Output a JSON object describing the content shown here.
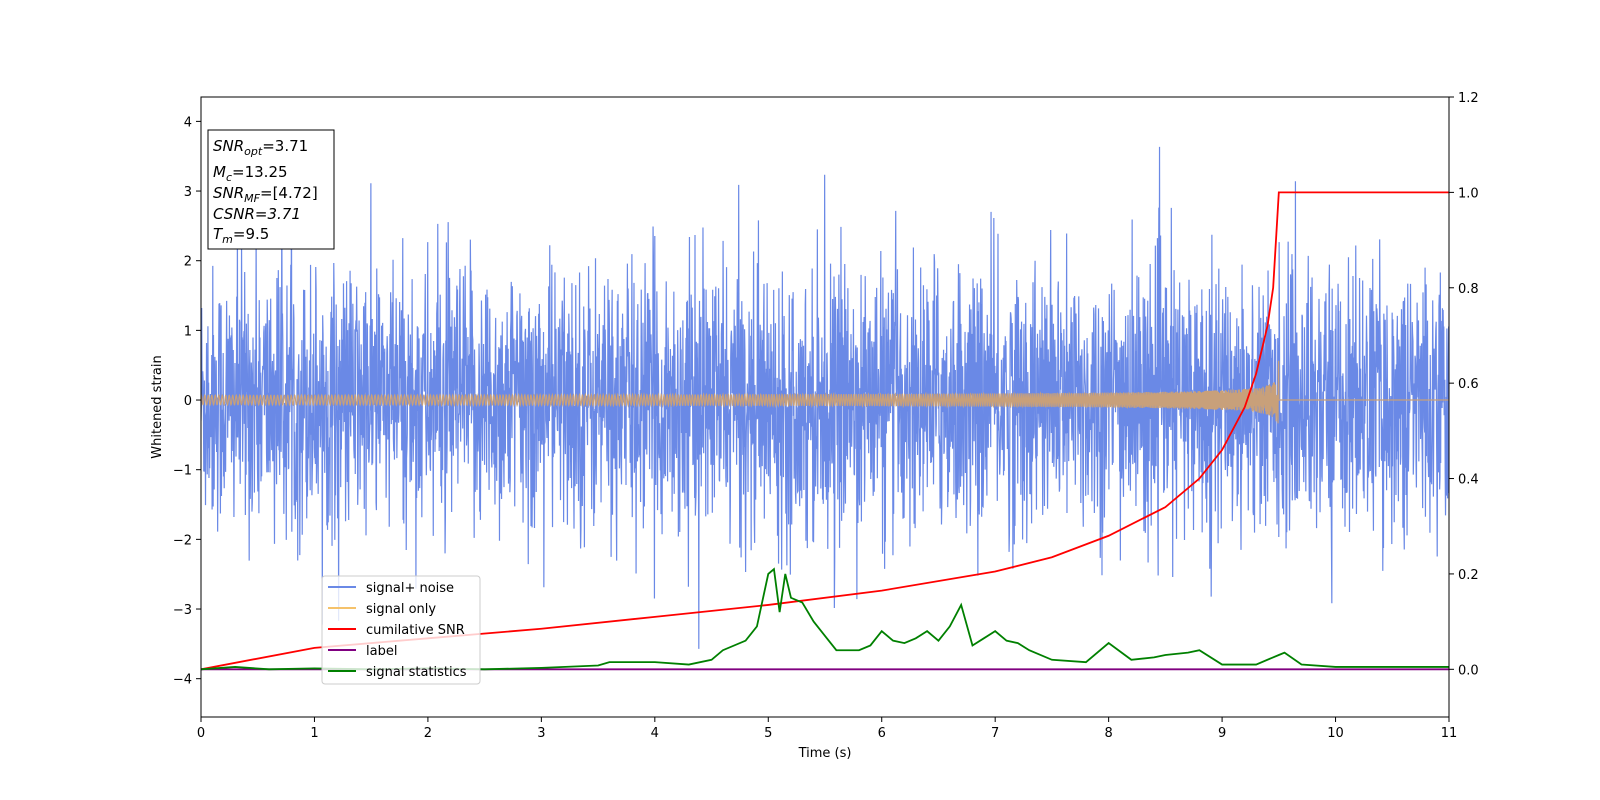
{
  "chart_data": {
    "type": "line",
    "xlabel": "Time (s)",
    "ylabel": "Whitened strain",
    "xlim": [
      0,
      11
    ],
    "ylim": [
      -4.55,
      4.35
    ],
    "y2lim": [
      -0.1,
      1.2
    ],
    "x_ticks": [
      "0",
      "1",
      "2",
      "3",
      "4",
      "5",
      "6",
      "7",
      "8",
      "9",
      "10",
      "11"
    ],
    "y_ticks": [
      "−4",
      "−3",
      "−2",
      "−1",
      "0",
      "1",
      "2",
      "3",
      "4"
    ],
    "y2_ticks": [
      "0.0",
      "0.2",
      "0.4",
      "0.6",
      "0.8",
      "1.0",
      "1.2"
    ],
    "legend_position": "lower-left",
    "info_box": {
      "snr_opt": "=3.71",
      "mc": "=13.25",
      "snr_mf": "=[4.72]",
      "csnr": "CSNR=3.71",
      "tm": "=9.5"
    },
    "series": [
      {
        "name": "signal+ noise",
        "color": "#6a89e6",
        "axis": "left",
        "description_values": "noise band approx ±2.3, spikes to ±4"
      },
      {
        "name": "signal only",
        "color": "#f5c26b",
        "axis": "left",
        "chirp_end_time": 9.5,
        "peak_amplitude": 0.75
      },
      {
        "name": "cumilative SNR",
        "color": "#ff0000",
        "axis": "right",
        "x": [
          0,
          1,
          2,
          3,
          4,
          5,
          6,
          7,
          7.5,
          8,
          8.5,
          8.8,
          9.0,
          9.2,
          9.3,
          9.4,
          9.45,
          9.5,
          11
        ],
        "y": [
          0.0,
          0.045,
          0.065,
          0.085,
          0.11,
          0.135,
          0.165,
          0.205,
          0.235,
          0.28,
          0.34,
          0.4,
          0.46,
          0.55,
          0.62,
          0.72,
          0.8,
          1.0,
          1.0
        ]
      },
      {
        "name": "label",
        "color": "#800080",
        "axis": "right",
        "x": [
          0,
          11
        ],
        "y": [
          0,
          0
        ]
      },
      {
        "name": "signal statistics",
        "color": "#008000",
        "axis": "right",
        "x": [
          0,
          0.3,
          0.6,
          1.0,
          1.5,
          2.0,
          2.5,
          3.0,
          3.5,
          3.6,
          4.0,
          4.3,
          4.5,
          4.6,
          4.8,
          4.9,
          5.0,
          5.05,
          5.1,
          5.15,
          5.2,
          5.3,
          5.4,
          5.5,
          5.6,
          5.8,
          5.9,
          6.0,
          6.1,
          6.2,
          6.3,
          6.4,
          6.5,
          6.6,
          6.7,
          6.8,
          6.9,
          7.0,
          7.1,
          7.2,
          7.3,
          7.5,
          7.8,
          8.0,
          8.2,
          8.4,
          8.5,
          8.7,
          8.8,
          9.0,
          9.3,
          9.5,
          9.55,
          9.7,
          10.0,
          10.5,
          11.0
        ],
        "y": [
          0.0,
          0.005,
          0.0,
          0.002,
          0.0,
          0.002,
          0.0,
          0.003,
          0.008,
          0.015,
          0.015,
          0.01,
          0.02,
          0.04,
          0.06,
          0.09,
          0.2,
          0.21,
          0.12,
          0.2,
          0.15,
          0.14,
          0.1,
          0.07,
          0.04,
          0.04,
          0.05,
          0.08,
          0.06,
          0.055,
          0.065,
          0.08,
          0.06,
          0.09,
          0.135,
          0.05,
          0.065,
          0.08,
          0.06,
          0.055,
          0.04,
          0.02,
          0.015,
          0.055,
          0.02,
          0.025,
          0.03,
          0.035,
          0.04,
          0.01,
          0.01,
          0.03,
          0.035,
          0.01,
          0.005,
          0.005,
          0.005
        ]
      }
    ]
  }
}
